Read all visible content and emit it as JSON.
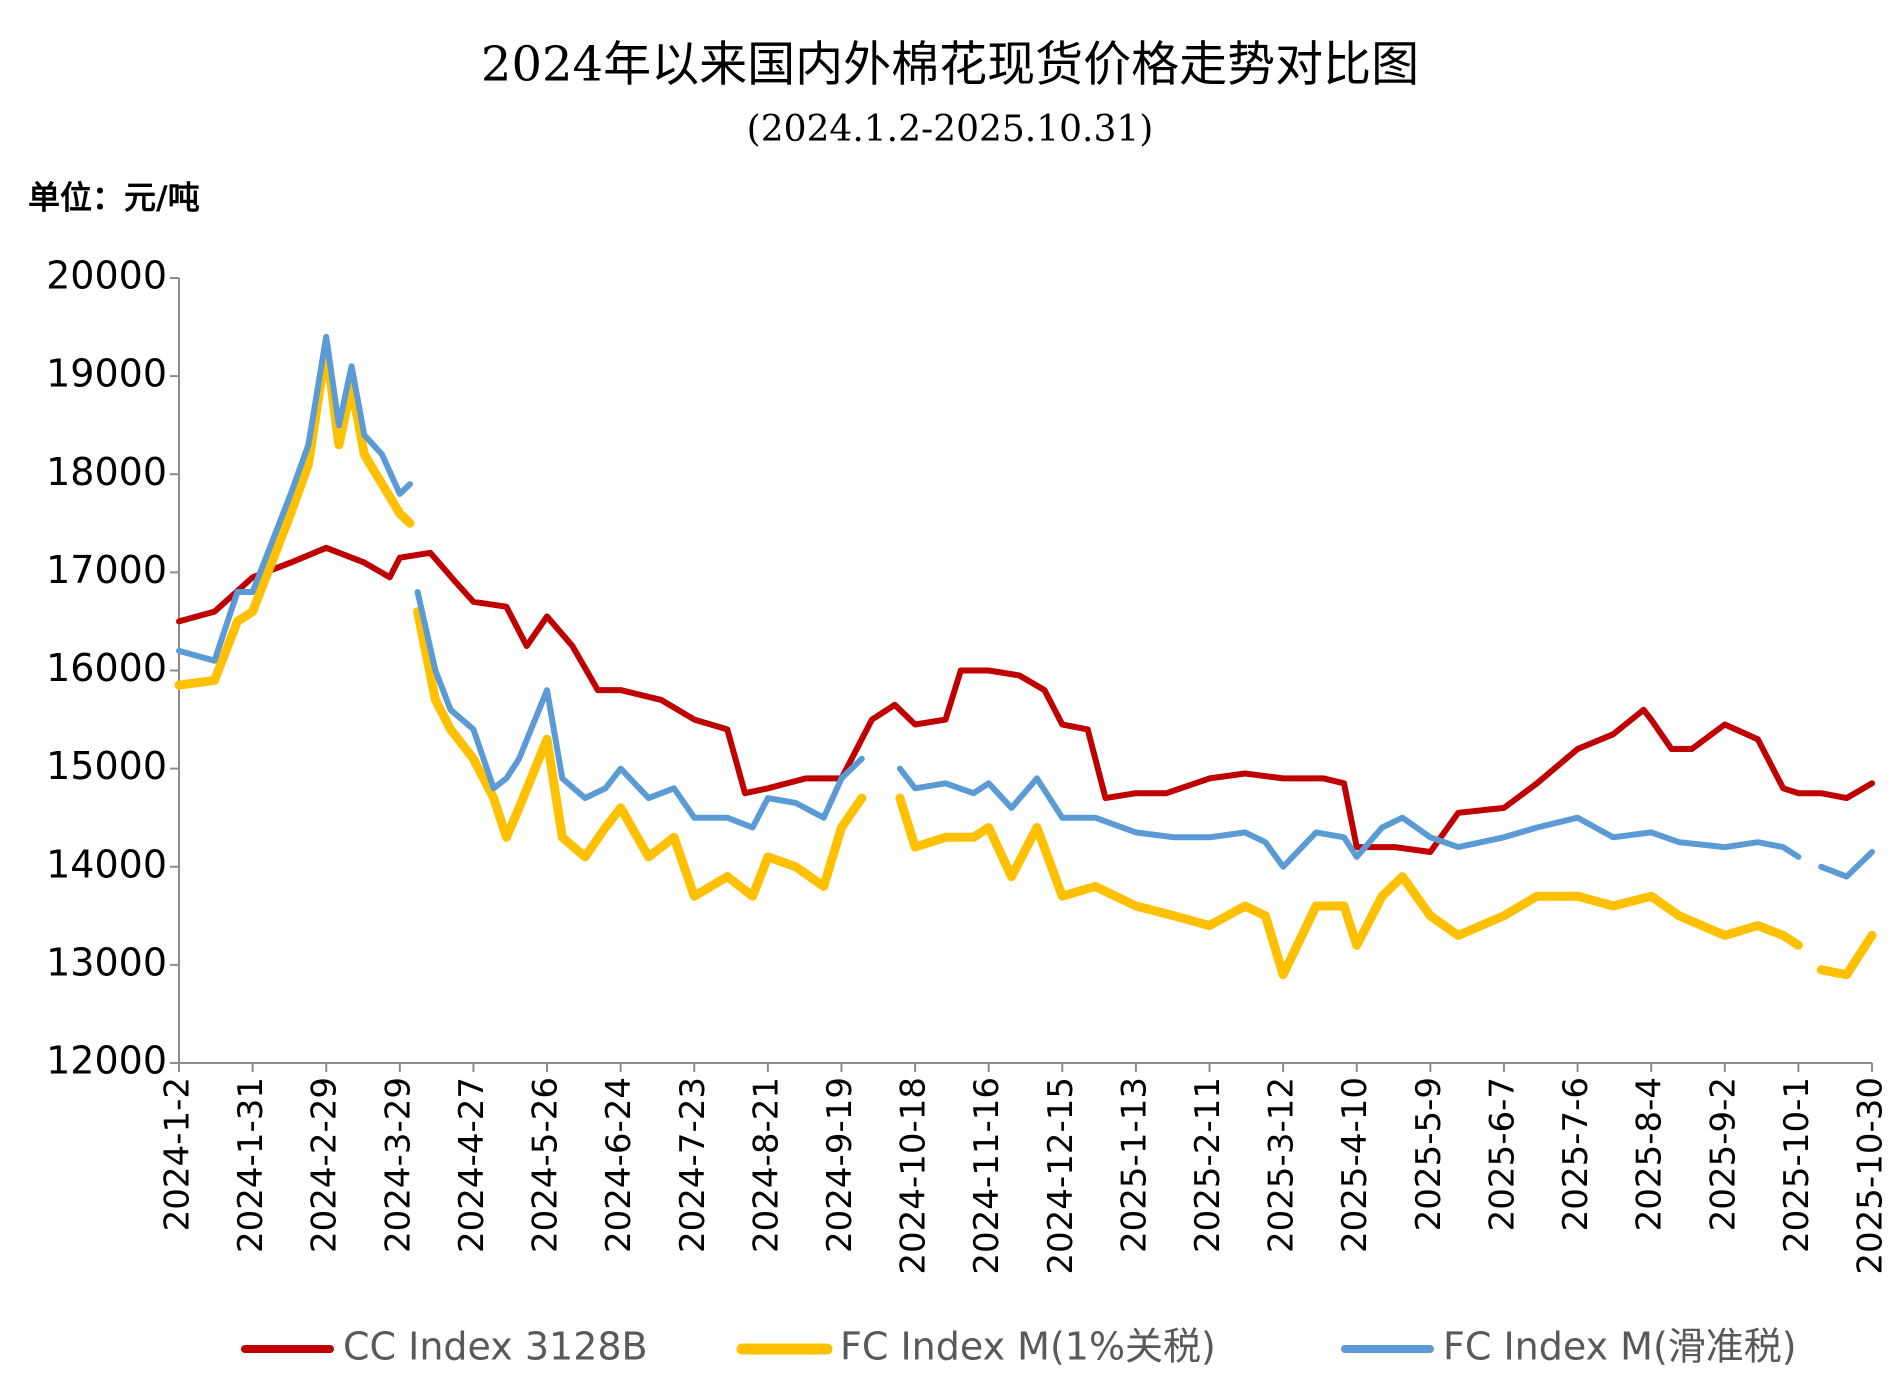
{
  "chart_data": {
    "type": "line",
    "title": "2024年以来国内外棉花现货价格走势对比图",
    "subtitle": "(2024.1.2-2025.10.31)",
    "unit_label": "单位：元/吨",
    "xlim": [
      "2024-1-2",
      "2025-10-30"
    ],
    "xticks": [
      "2024-1-2",
      "2024-1-31",
      "2024-2-29",
      "2024-3-29",
      "2024-4-27",
      "2024-5-26",
      "2024-6-24",
      "2024-7-23",
      "2024-8-21",
      "2024-9-19",
      "2024-10-18",
      "2024-11-16",
      "2024-12-15",
      "2025-1-13",
      "2025-2-11",
      "2025-3-12",
      "2025-4-10",
      "2025-5-9",
      "2025-6-7",
      "2025-7-6",
      "2025-8-4",
      "2025-9-2",
      "2025-10-1",
      "2025-10-30"
    ],
    "ylim": [
      12000,
      20000
    ],
    "yticks": [
      12000,
      13000,
      14000,
      15000,
      16000,
      17000,
      18000,
      19000,
      20000
    ],
    "grid": false,
    "legend": "bottom",
    "series": [
      {
        "name": "CC Index 3128B",
        "color": "#c00000",
        "x": [
          "2024-1-2",
          "2024-1-16",
          "2024-1-31",
          "2024-2-15",
          "2024-2-29",
          "2024-3-15",
          "2024-3-25",
          "2024-3-29",
          "2024-4-10",
          "2024-4-20",
          "2024-4-27",
          "2024-5-10",
          "2024-5-18",
          "2024-5-26",
          "2024-6-5",
          "2024-6-15",
          "2024-6-24",
          "2024-7-10",
          "2024-7-23",
          "2024-8-5",
          "2024-8-12",
          "2024-8-21",
          "2024-9-5",
          "2024-9-19",
          "2024-10-1",
          "2024-10-10",
          "2024-10-18",
          "2024-10-30",
          "2024-11-5",
          "2024-11-16",
          "2024-11-28",
          "2024-12-8",
          "2024-12-15",
          "2024-12-25",
          "2025-1-1",
          "2025-1-13",
          "2025-1-25",
          "2025-2-11",
          "2025-2-25",
          "2025-3-12",
          "2025-3-28",
          "2025-4-5",
          "2025-4-10",
          "2025-4-25",
          "2025-5-9",
          "2025-5-20",
          "2025-6-7",
          "2025-6-20",
          "2025-7-6",
          "2025-7-20",
          "2025-8-1",
          "2025-8-4",
          "2025-8-12",
          "2025-8-20",
          "2025-9-2",
          "2025-9-15",
          "2025-9-25",
          "2025-10-1",
          "2025-10-10",
          "2025-10-20",
          "2025-10-30"
        ],
        "values": [
          16500,
          16600,
          16950,
          17100,
          17250,
          17100,
          16950,
          17150,
          17200,
          16900,
          16700,
          16650,
          16250,
          16550,
          16250,
          15800,
          15800,
          15700,
          15500,
          15400,
          14750,
          14800,
          14900,
          14900,
          15500,
          15650,
          15450,
          15500,
          16000,
          16000,
          15950,
          15800,
          15450,
          15400,
          14700,
          14750,
          14750,
          14900,
          14950,
          14900,
          14900,
          14850,
          14200,
          14200,
          14150,
          14550,
          14600,
          14850,
          15200,
          15350,
          15600,
          15500,
          15200,
          15200,
          15450,
          15300,
          14800,
          14750,
          14750,
          14700,
          14850
        ]
      },
      {
        "name": "FC Index M(1%关税)",
        "color": "#ffc000",
        "x": [
          "2024-1-2",
          "2024-1-16",
          "2024-1-25",
          "2024-1-31",
          "2024-2-15",
          "2024-2-22",
          "2024-2-29",
          "2024-3-5",
          "2024-3-10",
          "2024-3-15",
          "2024-3-22",
          "2024-3-29",
          "2024-4-2",
          "2024-4-3",
          "2024-4-5",
          "2024-4-12",
          "2024-4-18",
          "2024-4-27",
          "2024-5-5",
          "2024-5-10",
          "2024-5-15",
          "2024-5-26",
          "2024-6-1",
          "2024-6-10",
          "2024-6-18",
          "2024-6-24",
          "2024-7-5",
          "2024-7-15",
          "2024-7-23",
          "2024-8-5",
          "2024-8-15",
          "2024-8-21",
          "2024-9-1",
          "2024-9-12",
          "2024-9-19",
          "2024-9-27",
          "2024-10-5",
          "2024-10-12",
          "2024-10-18",
          "2024-10-30",
          "2024-11-10",
          "2024-11-16",
          "2024-11-25",
          "2024-12-5",
          "2024-12-15",
          "2024-12-28",
          "2025-1-13",
          "2025-1-28",
          "2025-2-11",
          "2025-2-25",
          "2025-3-5",
          "2025-3-12",
          "2025-3-25",
          "2025-4-5",
          "2025-4-10",
          "2025-4-20",
          "2025-4-28",
          "2025-5-9",
          "2025-5-20",
          "2025-6-7",
          "2025-6-20",
          "2025-7-6",
          "2025-7-20",
          "2025-8-4",
          "2025-8-15",
          "2025-9-2",
          "2025-9-15",
          "2025-9-25",
          "2025-10-1",
          "2025-10-5",
          "2025-10-10",
          "2025-10-20",
          "2025-10-30"
        ],
        "values": [
          15850,
          15900,
          16500,
          16600,
          17600,
          18100,
          19300,
          18300,
          18900,
          18200,
          17900,
          17600,
          17500,
          null,
          16600,
          15700,
          15400,
          15100,
          14700,
          14300,
          14600,
          15300,
          14300,
          14100,
          14400,
          14600,
          14100,
          14300,
          13700,
          13900,
          13700,
          14100,
          14000,
          13800,
          14400,
          14700,
          null,
          14700,
          14200,
          14300,
          14300,
          14400,
          13900,
          14400,
          13700,
          13800,
          13600,
          13500,
          13400,
          13600,
          13500,
          12900,
          13600,
          13600,
          13200,
          13700,
          13900,
          13500,
          13300,
          13500,
          13700,
          13700,
          13600,
          13700,
          13500,
          13300,
          13400,
          13300,
          13200,
          null,
          12950,
          12900,
          13300
        ]
      },
      {
        "name": "FC Index M(滑准税)",
        "color": "#5b9bd5",
        "x": [
          "2024-1-2",
          "2024-1-16",
          "2024-1-25",
          "2024-1-31",
          "2024-2-15",
          "2024-2-22",
          "2024-2-29",
          "2024-3-5",
          "2024-3-10",
          "2024-3-15",
          "2024-3-22",
          "2024-3-29",
          "2024-4-2",
          "2024-4-3",
          "2024-4-5",
          "2024-4-12",
          "2024-4-18",
          "2024-4-27",
          "2024-5-5",
          "2024-5-10",
          "2024-5-15",
          "2024-5-26",
          "2024-6-1",
          "2024-6-10",
          "2024-6-18",
          "2024-6-24",
          "2024-7-5",
          "2024-7-15",
          "2024-7-23",
          "2024-8-5",
          "2024-8-15",
          "2024-8-21",
          "2024-9-1",
          "2024-9-12",
          "2024-9-19",
          "2024-9-27",
          "2024-10-5",
          "2024-10-12",
          "2024-10-18",
          "2024-10-30",
          "2024-11-10",
          "2024-11-16",
          "2024-11-25",
          "2024-12-5",
          "2024-12-15",
          "2024-12-28",
          "2025-1-13",
          "2025-1-28",
          "2025-2-11",
          "2025-2-25",
          "2025-3-5",
          "2025-3-12",
          "2025-3-25",
          "2025-4-5",
          "2025-4-10",
          "2025-4-20",
          "2025-4-28",
          "2025-5-9",
          "2025-5-20",
          "2025-6-7",
          "2025-6-20",
          "2025-7-6",
          "2025-7-20",
          "2025-8-4",
          "2025-8-15",
          "2025-9-2",
          "2025-9-15",
          "2025-9-25",
          "2025-10-1",
          "2025-10-5",
          "2025-10-10",
          "2025-10-20",
          "2025-10-30"
        ],
        "values": [
          16200,
          16100,
          16800,
          16800,
          17800,
          18300,
          19400,
          18500,
          19100,
          18400,
          18200,
          17800,
          17900,
          null,
          16800,
          16000,
          15600,
          15400,
          14800,
          14900,
          15100,
          15800,
          14900,
          14700,
          14800,
          15000,
          14700,
          14800,
          14500,
          14500,
          14400,
          14700,
          14650,
          14500,
          14900,
          15100,
          null,
          15000,
          14800,
          14850,
          14750,
          14850,
          14600,
          14900,
          14500,
          14500,
          14350,
          14300,
          14300,
          14350,
          14250,
          14000,
          14350,
          14300,
          14100,
          14400,
          14500,
          14300,
          14200,
          14300,
          14400,
          14500,
          14300,
          14350,
          14250,
          14200,
          14250,
          14200,
          14100,
          null,
          14000,
          13900,
          14150
        ]
      }
    ]
  }
}
